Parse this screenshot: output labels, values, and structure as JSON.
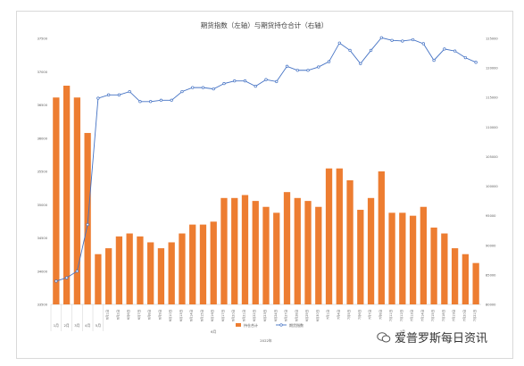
{
  "chart_data": {
    "type": "bar+line",
    "title": "期货指数（左轴）与期货持仓合计（右轴）",
    "left_axis": {
      "ticks": [
        3.35,
        3.4,
        3.45,
        3.5,
        3.55,
        3.6,
        3.65,
        3.7,
        3.75
      ],
      "tick_labels": [
        "33500",
        "34000",
        "34500",
        "35000",
        "35500",
        "36000",
        "36500",
        "37000",
        "37500"
      ],
      "ylim": [
        3.35,
        3.75
      ]
    },
    "right_axis": {
      "ticks": [
        80000,
        85000,
        90000,
        95000,
        100000,
        105000,
        110000,
        115000,
        120000,
        125000
      ],
      "tick_labels": [
        "80000",
        "85000",
        "90000",
        "95000",
        "100000",
        "105000",
        "110000",
        "115000",
        "120000",
        "125000"
      ],
      "ylim": [
        80000,
        125000
      ]
    },
    "categories": [
      "1月",
      "2月",
      "3月",
      "4月",
      "5月",
      "6月1日",
      "6月2日",
      "6月6日",
      "6月7日",
      "6月8日",
      "6月9日",
      "6月10日",
      "6月13日",
      "6月14日",
      "6月15日",
      "6月16日",
      "6月17日",
      "6月20日",
      "6月21日",
      "6月22日",
      "6月23日",
      "6月24日",
      "6月27日",
      "6月28日",
      "6月29日",
      "6月30日",
      "7月1日",
      "7月4日",
      "7月5日",
      "7月6日",
      "7月7日",
      "7月8日",
      "7月11日",
      "7月12日",
      "7月13日",
      "7月14日",
      "7月15日",
      "7月18日",
      "7月19日",
      "7月20日",
      "7月21日"
    ],
    "month_groups": [
      {
        "label": "6月",
        "from": 5,
        "to": 25
      },
      {
        "label": "7月",
        "from": 26,
        "to": 40
      }
    ],
    "year_label": "2022年",
    "series": [
      {
        "name": "持仓合计",
        "type": "bar",
        "axis": "right",
        "color": "#ed7d31",
        "values": [
          115000,
          117000,
          115000,
          109000,
          88500,
          89500,
          91500,
          92000,
          91500,
          90500,
          89500,
          90500,
          92000,
          93500,
          93500,
          94000,
          98000,
          98000,
          98500,
          97500,
          96500,
          95500,
          99000,
          98000,
          97500,
          96500,
          103000,
          103000,
          101000,
          96000,
          98000,
          102500,
          95500,
          95500,
          95000,
          96500,
          93000,
          92000,
          89500,
          88500,
          87000
        ]
      },
      {
        "name": "期货指数",
        "type": "line",
        "axis": "left",
        "color": "#4472c4",
        "values": [
          3.385,
          3.39,
          3.4,
          3.47,
          3.66,
          3.665,
          3.665,
          3.67,
          3.655,
          3.655,
          3.657,
          3.657,
          3.67,
          3.676,
          3.676,
          3.674,
          3.682,
          3.686,
          3.686,
          3.678,
          3.688,
          3.685,
          3.708,
          3.702,
          3.702,
          3.707,
          3.715,
          3.743,
          3.732,
          3.712,
          3.732,
          3.751,
          3.747,
          3.746,
          3.748,
          3.742,
          3.717,
          3.734,
          3.731,
          3.721,
          3.714
        ]
      }
    ],
    "legend": {
      "position": "bottom"
    },
    "grid": false
  },
  "watermark": "爱普罗斯每日资讯"
}
